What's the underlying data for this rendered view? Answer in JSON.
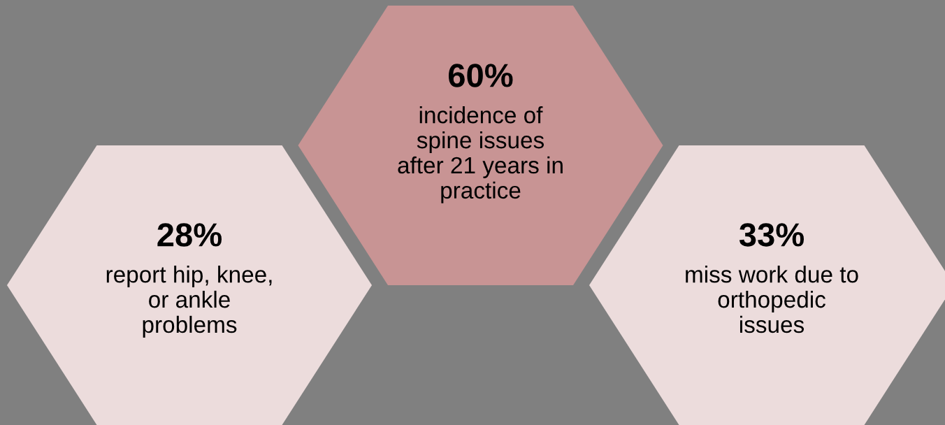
{
  "chart_data": {
    "type": "other",
    "categories": [
      "report hip, knee,\nor ankle\nproblems",
      "incidence of\nspine issues\nafter 21 years in\npractice",
      "miss work due to\northopedic\nissues"
    ],
    "values": [
      28,
      60,
      33
    ],
    "value_labels": [
      "28%",
      "60%",
      "33%"
    ],
    "colors": [
      "#ecdcdc",
      "#c89494",
      "#ecdcdc"
    ]
  }
}
